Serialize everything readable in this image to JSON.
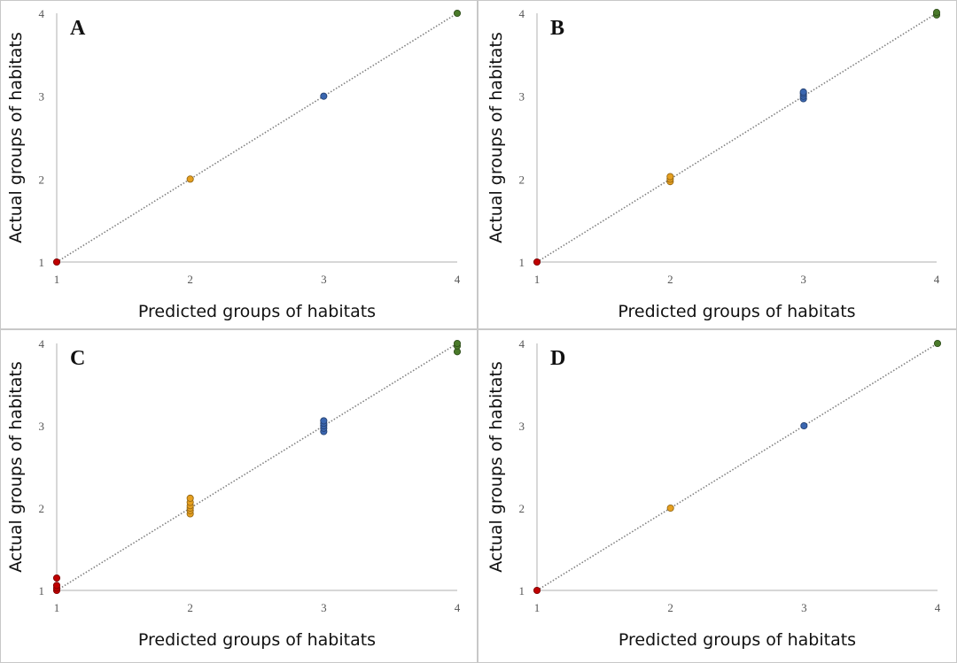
{
  "colors": {
    "group1": "#c00000",
    "group2": "#e6a020",
    "group3": "#3a66b0",
    "group4": "#4a7a2a",
    "trendline": "#808080",
    "axis": "#bfbfbf",
    "panel_border": "#c8c8c8"
  },
  "chart_data": [
    {
      "type": "scatter",
      "panel": "A",
      "xlabel": "Predicted groups of habitats",
      "ylabel": "Actual groups of habitats",
      "xlim": [
        1,
        4
      ],
      "ylim": [
        1,
        4
      ],
      "xticks": [
        "1",
        "2",
        "3",
        "4"
      ],
      "yticks": [
        "1",
        "2",
        "3",
        "4"
      ],
      "trendline": [
        [
          1,
          1
        ],
        [
          4,
          4
        ]
      ],
      "points": [
        {
          "x": 1,
          "y": 1,
          "group": 1
        },
        {
          "x": 2,
          "y": 2,
          "group": 2
        },
        {
          "x": 3,
          "y": 3,
          "group": 3
        },
        {
          "x": 4,
          "y": 4,
          "group": 4
        }
      ]
    },
    {
      "type": "scatter",
      "panel": "B",
      "xlabel": "Predicted groups of habitats",
      "ylabel": "Actual groups of habitats",
      "xlim": [
        1,
        4
      ],
      "ylim": [
        1,
        4
      ],
      "xticks": [
        "1",
        "2",
        "3",
        "4"
      ],
      "yticks": [
        "1",
        "2",
        "3",
        "4"
      ],
      "trendline": [
        [
          1,
          1
        ],
        [
          4,
          4
        ]
      ],
      "points": [
        {
          "x": 1,
          "y": 1,
          "group": 1
        },
        {
          "x": 2,
          "y": 1.97,
          "group": 2
        },
        {
          "x": 2,
          "y": 2.0,
          "group": 2
        },
        {
          "x": 2,
          "y": 2.03,
          "group": 2
        },
        {
          "x": 3,
          "y": 2.97,
          "group": 3
        },
        {
          "x": 3,
          "y": 3.0,
          "group": 3
        },
        {
          "x": 3,
          "y": 3.03,
          "group": 3
        },
        {
          "x": 3,
          "y": 3.05,
          "group": 3
        },
        {
          "x": 4,
          "y": 3.98,
          "group": 4
        },
        {
          "x": 4,
          "y": 4.01,
          "group": 4
        }
      ]
    },
    {
      "type": "scatter",
      "panel": "C",
      "xlabel": "Predicted groups of habitats",
      "ylabel": "Actual groups of habitats",
      "xlim": [
        1,
        4
      ],
      "ylim": [
        1,
        4
      ],
      "xticks": [
        "1",
        "2",
        "3",
        "4"
      ],
      "yticks": [
        "1",
        "2",
        "3",
        "4"
      ],
      "trendline": [
        [
          1,
          1
        ],
        [
          4,
          4
        ]
      ],
      "points": [
        {
          "x": 1,
          "y": 1.0,
          "group": 1
        },
        {
          "x": 1,
          "y": 1.03,
          "group": 1
        },
        {
          "x": 1,
          "y": 1.06,
          "group": 1
        },
        {
          "x": 1,
          "y": 1.15,
          "group": 1
        },
        {
          "x": 2,
          "y": 1.93,
          "group": 2
        },
        {
          "x": 2,
          "y": 1.97,
          "group": 2
        },
        {
          "x": 2,
          "y": 2.0,
          "group": 2
        },
        {
          "x": 2,
          "y": 2.03,
          "group": 2
        },
        {
          "x": 2,
          "y": 2.07,
          "group": 2
        },
        {
          "x": 2,
          "y": 2.12,
          "group": 2
        },
        {
          "x": 3,
          "y": 2.93,
          "group": 3
        },
        {
          "x": 3,
          "y": 2.97,
          "group": 3
        },
        {
          "x": 3,
          "y": 3.0,
          "group": 3
        },
        {
          "x": 3,
          "y": 3.03,
          "group": 3
        },
        {
          "x": 3,
          "y": 3.06,
          "group": 3
        },
        {
          "x": 4,
          "y": 3.9,
          "group": 4
        },
        {
          "x": 4,
          "y": 3.97,
          "group": 4
        },
        {
          "x": 4,
          "y": 4.0,
          "group": 4
        }
      ]
    },
    {
      "type": "scatter",
      "panel": "D",
      "xlabel": "Predicted groups of habitats",
      "ylabel": "Actual groups of habitats",
      "xlim": [
        1,
        4
      ],
      "ylim": [
        1,
        4
      ],
      "xticks": [
        "1",
        "2",
        "3",
        "4"
      ],
      "yticks": [
        "1",
        "2",
        "3",
        "4"
      ],
      "trendline": [
        [
          1,
          1
        ],
        [
          4,
          4
        ]
      ],
      "points": [
        {
          "x": 1,
          "y": 1,
          "group": 1
        },
        {
          "x": 2,
          "y": 2,
          "group": 2
        },
        {
          "x": 3,
          "y": 3,
          "group": 3
        },
        {
          "x": 4,
          "y": 4,
          "group": 4
        }
      ]
    }
  ]
}
